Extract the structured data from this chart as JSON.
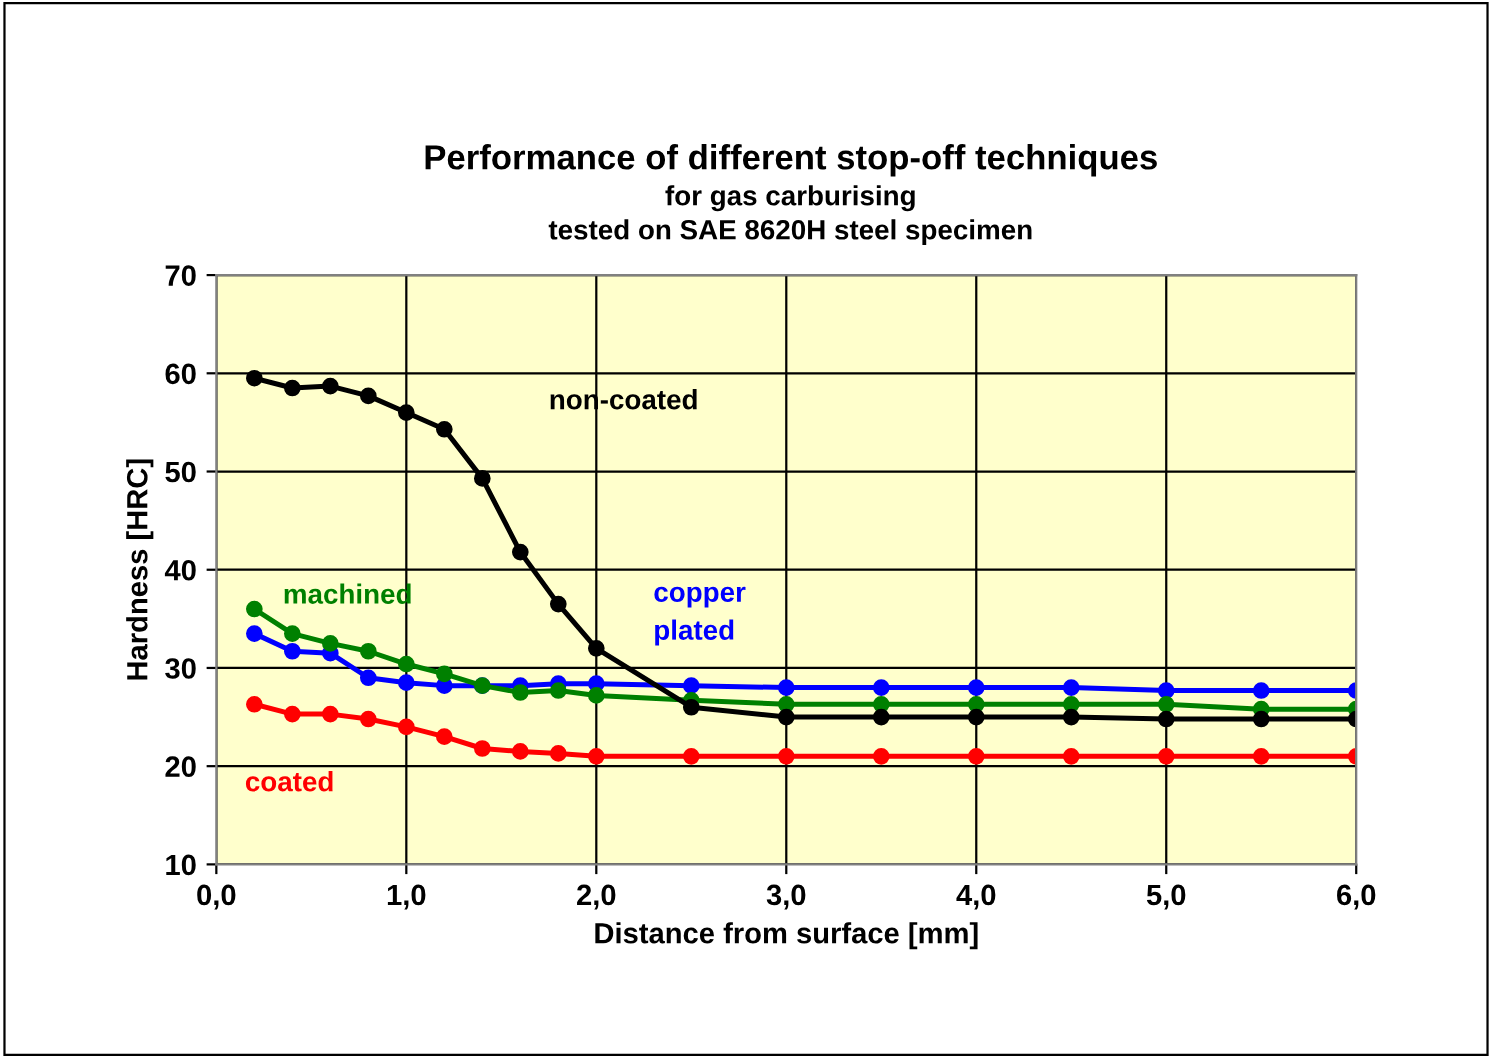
{
  "chart_data": {
    "type": "line",
    "title": "Performance of different stop-off techniques",
    "subtitle": "for gas carburising\ntested on SAE 8620H steel specimen",
    "xlabel": "Distance from surface [mm]",
    "ylabel": "Hardness [HRC]",
    "x": [
      0.2,
      0.4,
      0.6,
      0.8,
      1.0,
      1.2,
      1.4,
      1.6,
      1.8,
      2.0,
      2.5,
      3.0,
      3.5,
      4.0,
      4.5,
      5.0,
      5.5,
      6.0
    ],
    "series": [
      {
        "name": "non-coated",
        "color": "#000000",
        "values": [
          59.5,
          58.5,
          58.7,
          57.7,
          56,
          54.3,
          49.3,
          41.8,
          36.5,
          32,
          26,
          25,
          25,
          25,
          25,
          24.8,
          24.8,
          24.8
        ]
      },
      {
        "name": "machined",
        "color": "#008000",
        "values": [
          36,
          33.5,
          32.5,
          31.7,
          30.4,
          29.4,
          28.2,
          27.5,
          27.7,
          27.2,
          26.7,
          26.3,
          26.3,
          26.3,
          26.3,
          26.3,
          25.8,
          25.8
        ]
      },
      {
        "name": "copper\nplated",
        "color": "#0000ff",
        "values": [
          33.5,
          31.7,
          31.5,
          29,
          28.5,
          28.2,
          28.2,
          28.2,
          28.4,
          28.4,
          28.2,
          28,
          28,
          28,
          28,
          27.7,
          27.7,
          27.7
        ]
      },
      {
        "name": "coated",
        "color": "#ff0000",
        "values": [
          26.3,
          25.3,
          25.3,
          24.8,
          24,
          23,
          21.8,
          21.5,
          21.3,
          21,
          21,
          21,
          21,
          21,
          21,
          21,
          21,
          21
        ]
      }
    ],
    "xlim": [
      0,
      6
    ],
    "ylim": [
      10,
      70
    ],
    "xticks": [
      {
        "value": 0,
        "label": "0,0"
      },
      {
        "value": 1,
        "label": "1,0"
      },
      {
        "value": 2,
        "label": "2,0"
      },
      {
        "value": 3,
        "label": "3,0"
      },
      {
        "value": 4,
        "label": "4,0"
      },
      {
        "value": 5,
        "label": "5,0"
      },
      {
        "value": 6,
        "label": "6,0"
      }
    ],
    "yticks": [
      10,
      20,
      30,
      40,
      50,
      60,
      70
    ],
    "grid": true,
    "marker": "circle",
    "line_style": "solid",
    "legend": false
  }
}
